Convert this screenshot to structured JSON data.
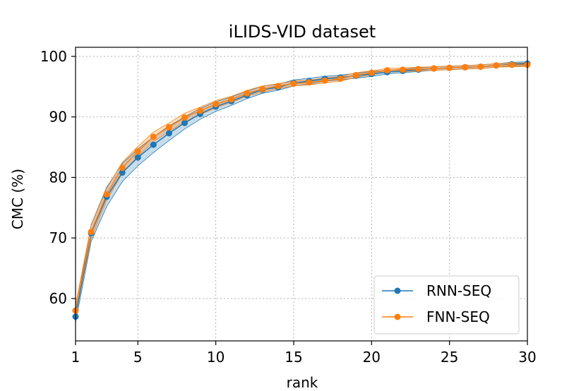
{
  "chart_data": {
    "type": "line",
    "title": "iLIDS-VID dataset",
    "xlabel": "rank",
    "ylabel": "CMC (%)",
    "xlim": [
      1,
      30
    ],
    "ylim": [
      53,
      101.5
    ],
    "xticks": [
      1,
      5,
      10,
      15,
      20,
      25,
      30
    ],
    "yticks": [
      60,
      70,
      80,
      90,
      100
    ],
    "grid": true,
    "legend_position": "lower-right",
    "x": [
      1,
      2,
      3,
      4,
      5,
      6,
      7,
      8,
      9,
      10,
      11,
      12,
      13,
      14,
      15,
      16,
      17,
      18,
      19,
      20,
      21,
      22,
      23,
      24,
      25,
      26,
      27,
      28,
      29,
      30
    ],
    "series": [
      {
        "name": "RNN-SEQ",
        "color": "#1f77b4",
        "values": [
          57.0,
          70.8,
          76.8,
          80.8,
          83.3,
          85.4,
          87.3,
          89.0,
          90.5,
          91.7,
          92.6,
          93.6,
          94.5,
          94.9,
          95.6,
          95.9,
          96.3,
          96.5,
          96.8,
          97.1,
          97.4,
          97.6,
          97.8,
          98.0,
          98.1,
          98.2,
          98.3,
          98.5,
          98.7,
          98.8
        ],
        "band": [
          1.0,
          1.4,
          1.6,
          1.5,
          1.4,
          1.3,
          1.2,
          1.0,
          0.9,
          0.8,
          0.7,
          0.6,
          0.6,
          0.5,
          0.5,
          0.5,
          0.4,
          0.4,
          0.4,
          0.4,
          0.3,
          0.3,
          0.3,
          0.3,
          0.3,
          0.3,
          0.3,
          0.3,
          0.3,
          0.3
        ]
      },
      {
        "name": "FNN-SEQ",
        "color": "#ff7f0e",
        "values": [
          58.0,
          71.0,
          77.2,
          81.6,
          84.3,
          86.7,
          88.3,
          89.9,
          91.0,
          92.1,
          92.9,
          93.9,
          94.6,
          95.1,
          95.5,
          95.7,
          96.0,
          96.3,
          96.9,
          97.3,
          97.7,
          97.8,
          97.9,
          98.0,
          98.1,
          98.2,
          98.3,
          98.5,
          98.6,
          98.6
        ],
        "band": [
          0.9,
          1.1,
          1.0,
          0.9,
          0.8,
          0.8,
          0.7,
          0.7,
          0.6,
          0.6,
          0.5,
          0.5,
          0.5,
          0.4,
          0.4,
          0.4,
          0.4,
          0.4,
          0.4,
          0.3,
          0.3,
          0.3,
          0.3,
          0.3,
          0.3,
          0.3,
          0.3,
          0.3,
          0.3,
          0.3
        ]
      }
    ]
  }
}
